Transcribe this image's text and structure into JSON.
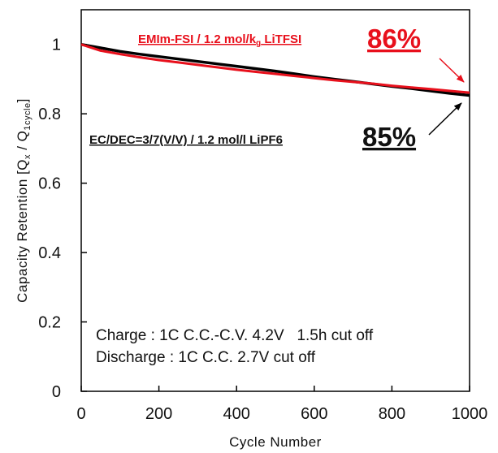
{
  "chart_data": {
    "type": "line",
    "xlabel": "Cycle Number",
    "ylabel": "Capacity Retention [Qx / Q1cycle]",
    "ylabel_parts": {
      "lead": "Capacity Retention [Q",
      "sub1": "x",
      "mid": " / Q",
      "sub2": "1cycle",
      "tail": "]"
    },
    "xlim": [
      0,
      1000
    ],
    "ylim": [
      0,
      1.1
    ],
    "x_ticks": [
      0,
      200,
      400,
      600,
      800,
      1000
    ],
    "y_ticks": [
      0,
      0.2,
      0.4,
      0.6,
      0.8,
      1
    ],
    "grid": false,
    "series": [
      {
        "name": "EC/DEC=3/7(V/V) / 1.2 mol/l LiPF6",
        "color": "#000000",
        "x": [
          0,
          50,
          100,
          150,
          200,
          250,
          300,
          350,
          400,
          450,
          500,
          550,
          600,
          650,
          700,
          750,
          800,
          850,
          900,
          950,
          1000
        ],
        "y": [
          1.0,
          0.99,
          0.98,
          0.972,
          0.965,
          0.958,
          0.951,
          0.944,
          0.937,
          0.93,
          0.923,
          0.915,
          0.907,
          0.9,
          0.893,
          0.886,
          0.879,
          0.873,
          0.866,
          0.859,
          0.853
        ],
        "percent_label": "85%"
      },
      {
        "name": "EMIm-FSI / 1.2 mol/kg LiTFSI",
        "color": "#e8101c",
        "x": [
          0,
          50,
          100,
          150,
          200,
          250,
          300,
          350,
          400,
          450,
          500,
          550,
          600,
          650,
          700,
          750,
          800,
          850,
          900,
          950,
          1000
        ],
        "y": [
          1.0,
          0.982,
          0.972,
          0.963,
          0.955,
          0.948,
          0.941,
          0.934,
          0.927,
          0.921,
          0.915,
          0.909,
          0.903,
          0.897,
          0.892,
          0.887,
          0.881,
          0.876,
          0.871,
          0.866,
          0.861
        ],
        "percent_label": "86%"
      }
    ],
    "annotations": {
      "red_label_parts": {
        "lead": "EMIm-FSI / 1.2 mol/k",
        "sub": "g",
        "tail": " LiTFSI"
      },
      "conditions": [
        "Charge : 1C C.C.-C.V. 4.2V   1.5h cut off",
        "Discharge : 1C C.C. 2.7V cut off"
      ]
    }
  }
}
